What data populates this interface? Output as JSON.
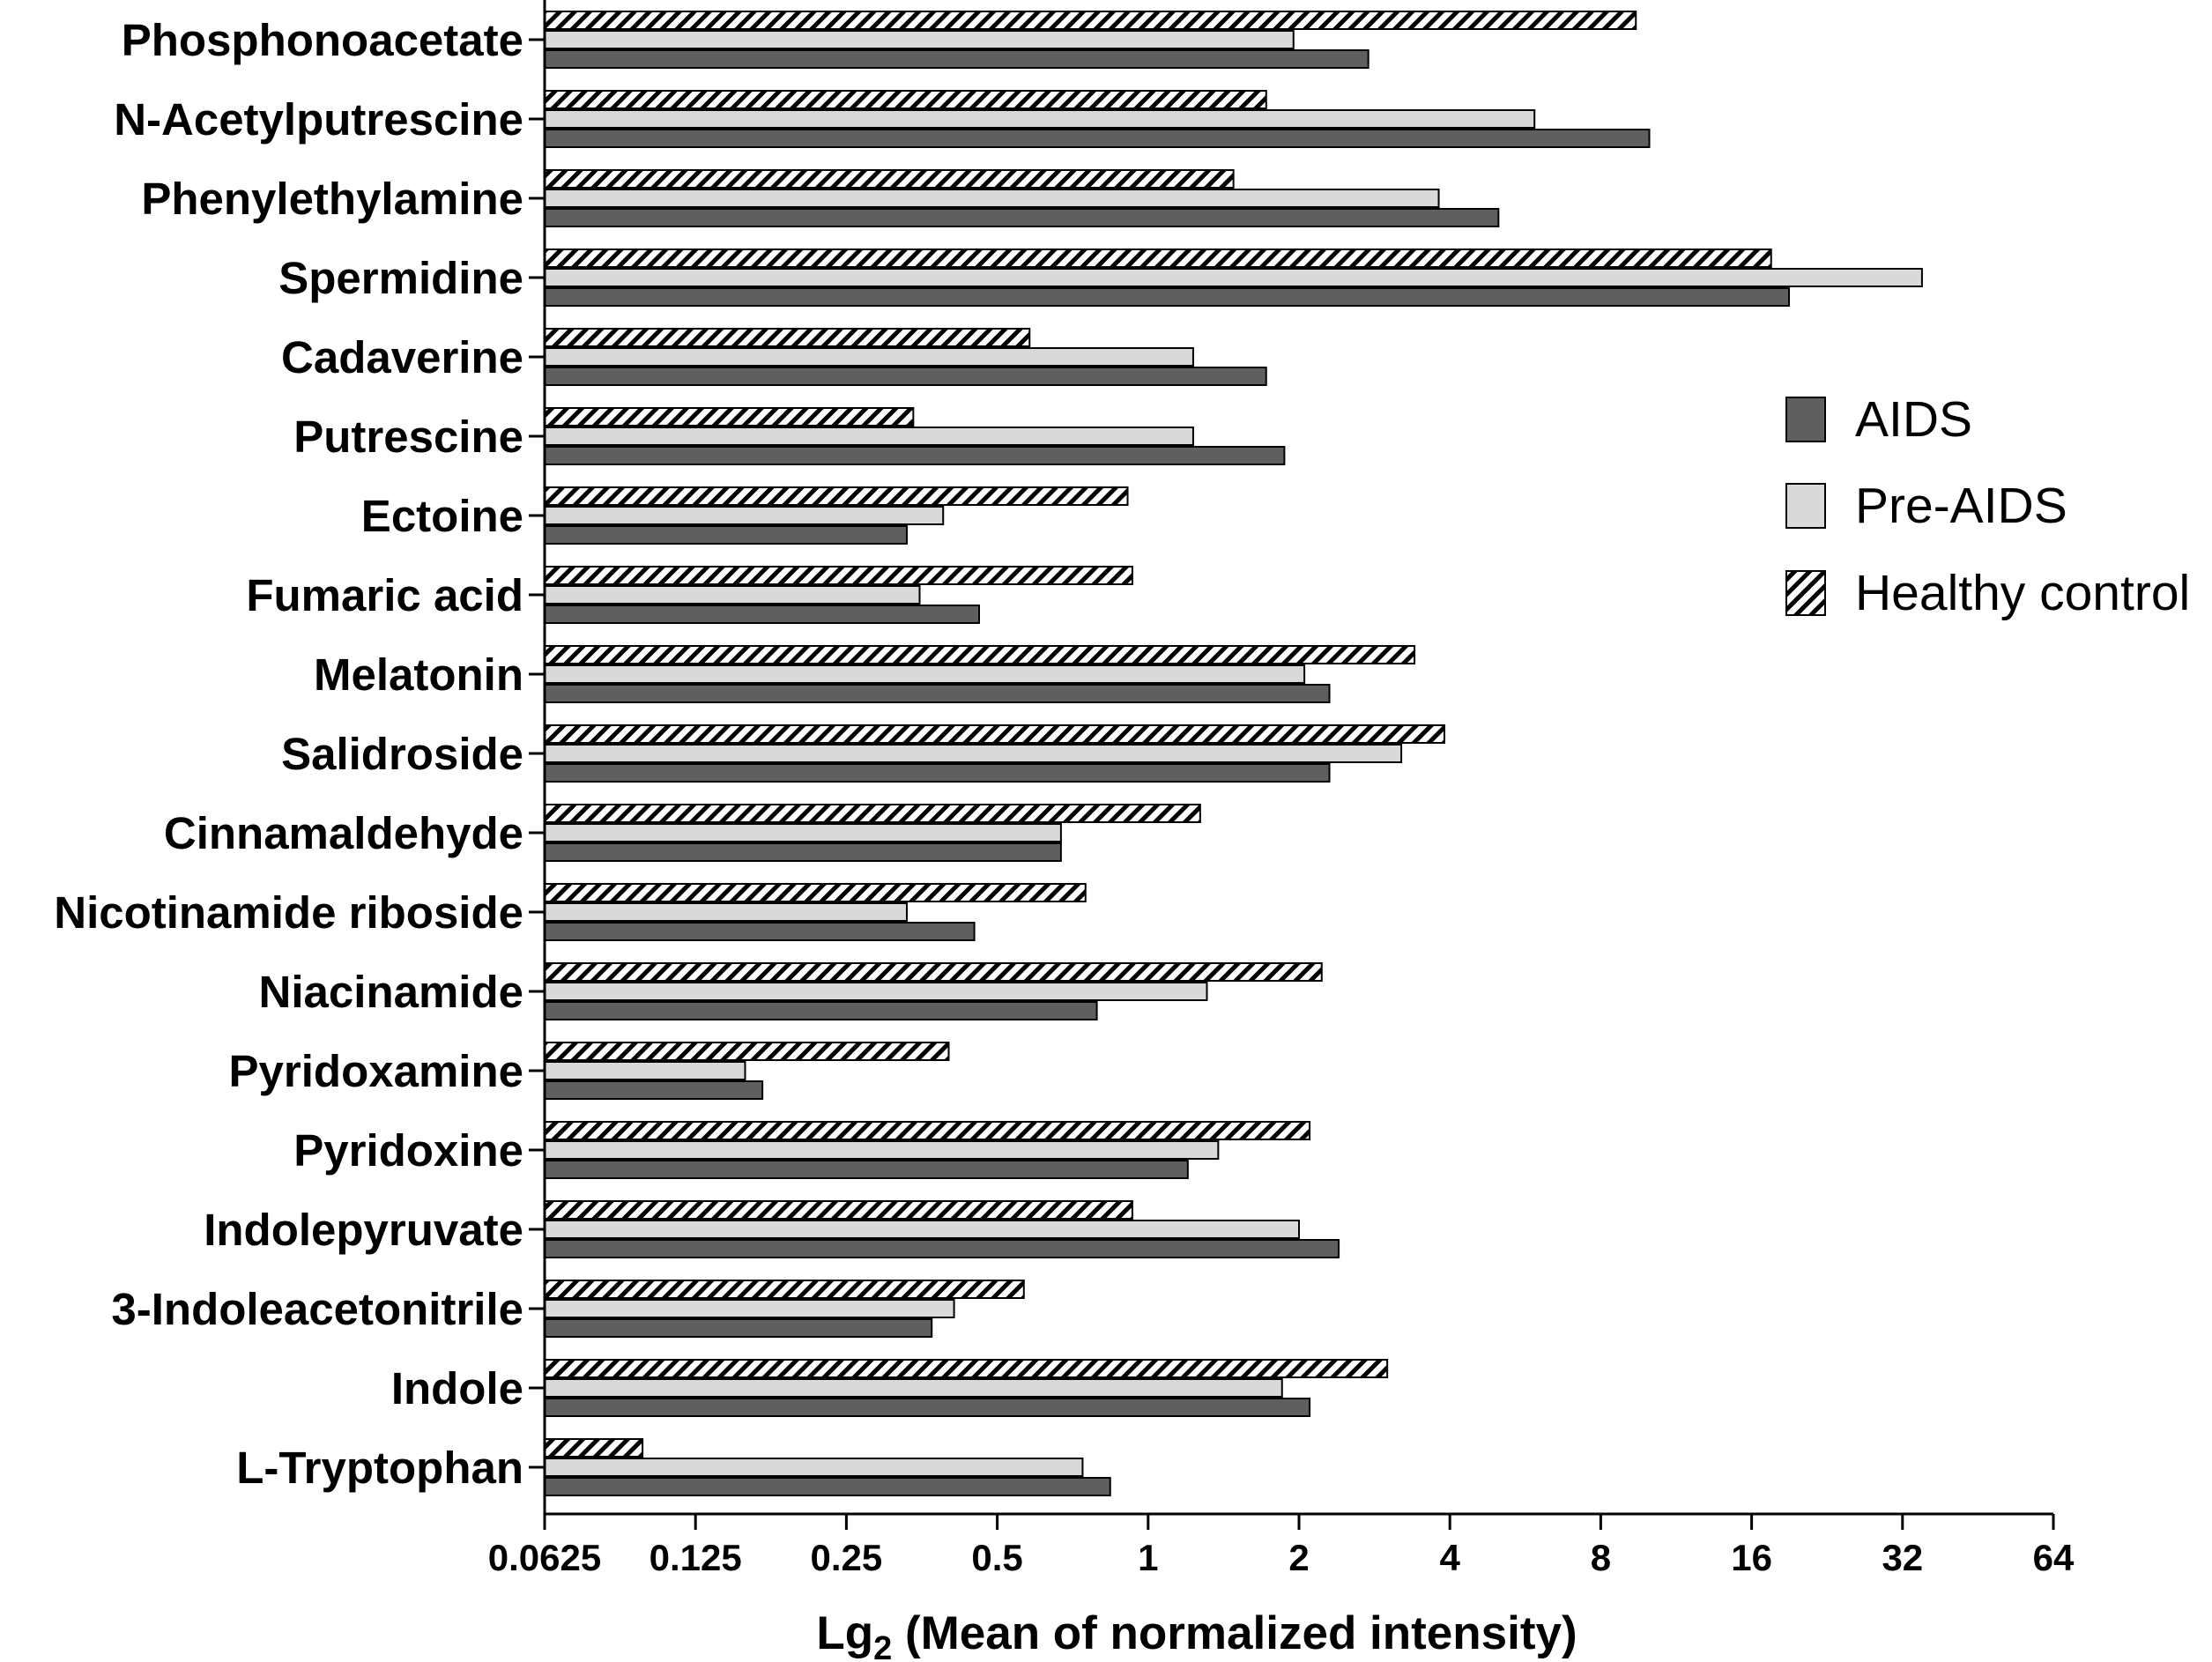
{
  "chart_data": {
    "type": "bar",
    "orientation": "horizontal",
    "xscale": "log2",
    "xlim": [
      0.0625,
      64
    ],
    "xticks": [
      "0.0625",
      "0.125",
      "0.25",
      "0.5",
      "1",
      "2",
      "4",
      "8",
      "16",
      "32",
      "64"
    ],
    "xlabel_prefix": "Lg",
    "xlabel_sub": "2",
    "xlabel_rest": " (Mean of normalized intensity)",
    "categories": [
      "Phosphonoacetate",
      "N-Acetylputrescine",
      "Phenylethylamine",
      "Spermidine",
      "Cadaverine",
      "Putrescine",
      "Ectoine",
      "Fumaric acid",
      "Melatonin",
      "Salidroside",
      "Cinnamaldehyde",
      "Nicotinamide riboside",
      "Niacinamide",
      "Pyridoxamine",
      "Pyridoxine",
      "Indolepyruvate",
      "3-Indoleacetonitrile",
      "Indole",
      "L-Tryptophan"
    ],
    "series": [
      {
        "name": "Healthy control",
        "color": "#ffffff",
        "pattern": "hatch",
        "values": [
          9.4,
          1.72,
          1.48,
          17.5,
          0.58,
          0.34,
          0.91,
          0.93,
          3.4,
          3.9,
          1.27,
          0.75,
          2.22,
          0.4,
          2.1,
          0.93,
          0.565,
          3.0,
          0.098
        ]
      },
      {
        "name": "Pre-AIDS",
        "color": "#d9d9d9",
        "pattern": "solid",
        "values": [
          1.95,
          5.9,
          3.8,
          35.0,
          1.23,
          1.23,
          0.39,
          0.35,
          2.05,
          3.2,
          0.67,
          0.33,
          1.31,
          0.157,
          1.38,
          2.0,
          0.41,
          1.85,
          0.74
        ]
      },
      {
        "name": "AIDS",
        "color": "#5f5f5f",
        "pattern": "solid",
        "values": [
          2.75,
          10.0,
          5.0,
          19.0,
          1.72,
          1.87,
          0.33,
          0.46,
          2.3,
          2.3,
          0.67,
          0.45,
          0.79,
          0.17,
          1.2,
          2.4,
          0.37,
          2.1,
          0.84
        ]
      }
    ],
    "legend": [
      {
        "name": "AIDS",
        "color": "#5f5f5f",
        "pattern": "solid"
      },
      {
        "name": "Pre-AIDS",
        "color": "#d9d9d9",
        "pattern": "solid"
      },
      {
        "name": "Healthy control",
        "color": "#ffffff",
        "pattern": "hatch"
      }
    ],
    "legend_position": "right-upper"
  }
}
